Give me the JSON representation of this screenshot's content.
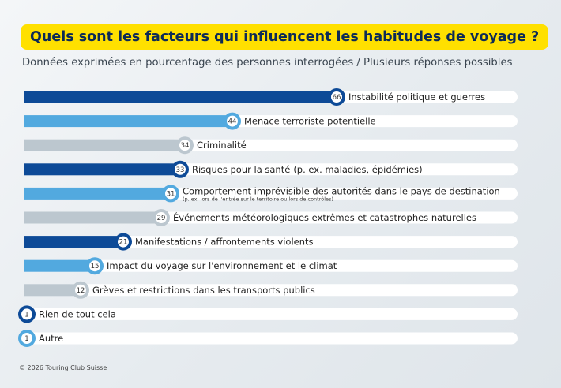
{
  "title": "Quels sont les facteurs qui influencent les habitudes de voyage ?",
  "subtitle": "Données exprimées en pourcentage des personnes interrogées / Plusieurs réponses possibles",
  "copyright": "© 2026 Touring Club Suisse",
  "colors": {
    "dark_blue": "#0d4a97",
    "light_blue": "#52a9df",
    "grey": "#bcc7cf",
    "track": "#ffffff"
  },
  "chart_data": {
    "type": "bar",
    "orientation": "horizontal",
    "xlim": [
      0,
      100
    ],
    "grid": false,
    "legend": "none",
    "bars": [
      {
        "label": "Instabilité politique et guerres",
        "note": "",
        "value": 66,
        "color": "dark_blue"
      },
      {
        "label": "Menace terroriste potentielle",
        "note": "",
        "value": 44,
        "color": "light_blue"
      },
      {
        "label": "Criminalité",
        "note": "",
        "value": 34,
        "color": "grey"
      },
      {
        "label": "Risques pour la santé",
        "note": "(p. ex. maladies, épidémies)",
        "value": 33,
        "color": "dark_blue"
      },
      {
        "label": "Comportement imprévisible des autorités dans le pays de destination",
        "note": "(p. ex. lors de l'entrée sur le territoire ou lors de contrôles)",
        "value": 31,
        "color": "light_blue"
      },
      {
        "label": "Événements météorologiques extrêmes et catastrophes naturelles",
        "note": "",
        "value": 29,
        "color": "grey"
      },
      {
        "label": "Manifestations / affrontements violents",
        "note": "",
        "value": 21,
        "color": "dark_blue"
      },
      {
        "label": "Impact du voyage sur l'environnement et le climat",
        "note": "",
        "value": 15,
        "color": "light_blue"
      },
      {
        "label": "Grèves et restrictions dans les transports publics",
        "note": "",
        "value": 12,
        "color": "grey"
      },
      {
        "label": "Rien de tout cela",
        "note": "",
        "value": 1,
        "color": "dark_blue"
      },
      {
        "label": "Autre",
        "note": "",
        "value": 1,
        "color": "light_blue"
      }
    ]
  }
}
